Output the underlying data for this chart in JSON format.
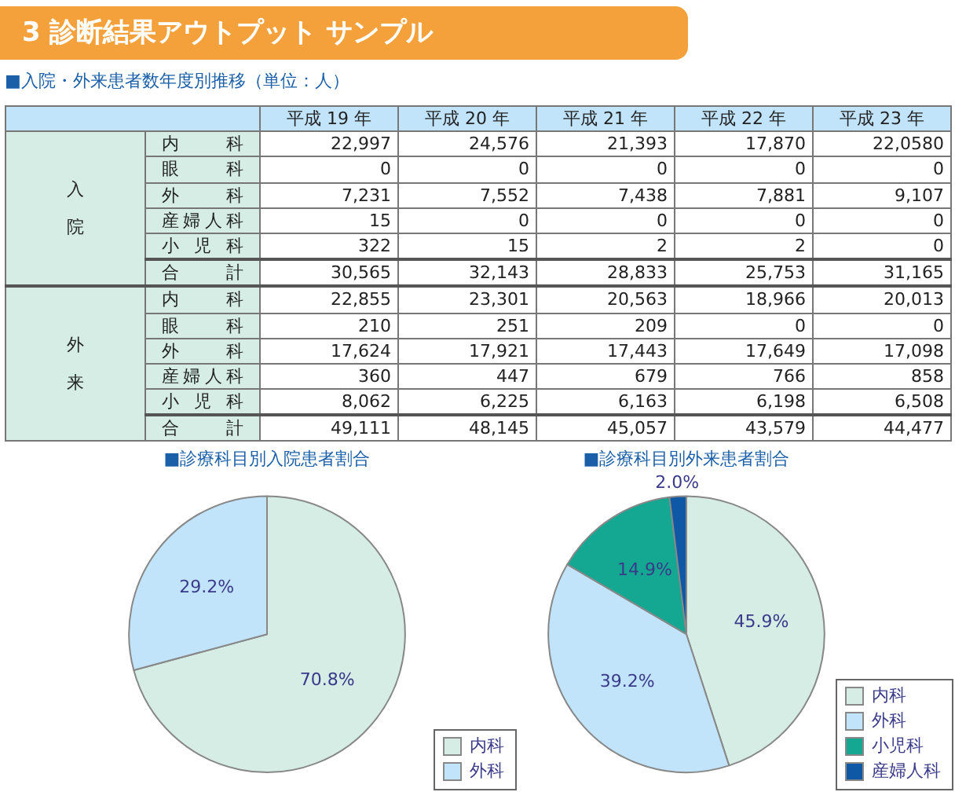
{
  "chart_data": [
    {
      "type": "heatmap",
      "title": "3 診断結果アウトプット サンプル",
      "subtitle": "■入院・外来患者数年度別推移（単位：人）",
      "categories": [
        "平成 19 年",
        "平成 20 年",
        "平成 21 年",
        "平成 22 年",
        "平成 23 年"
      ],
      "y_categories": [
        "内科",
        "眼科",
        "外科",
        "産婦人科",
        "小児科",
        "合計",
        "内科",
        "眼科",
        "外科",
        "産婦人科",
        "小児科",
        "合計"
      ],
      "annotations": [
        "入院",
        "外来"
      ],
      "cells": [
        [
          "22,997",
          "24,576",
          "21,393",
          "17,870",
          "22,0580"
        ],
        [
          "0",
          "0",
          "0",
          "0",
          "0"
        ],
        [
          "7,231",
          "7,552",
          "7,438",
          "7,881",
          "9,107"
        ],
        [
          "15",
          "0",
          "0",
          "0",
          "0"
        ],
        [
          "322",
          "15",
          "2",
          "2",
          "0"
        ],
        [
          "30,565",
          "32,143",
          "28,833",
          "25,753",
          "31,165"
        ],
        [
          "22,855",
          "23,301",
          "20,563",
          "18,966",
          "20,013"
        ],
        [
          "210",
          "251",
          "209",
          "0",
          "0"
        ],
        [
          "17,624",
          "17,921",
          "17,443",
          "17,649",
          "17,098"
        ],
        [
          "360",
          "447",
          "679",
          "766",
          "858"
        ],
        [
          "8,062",
          "6,225",
          "6,163",
          "6,198",
          "6,508"
        ],
        [
          "49,111",
          "48,145",
          "45,057",
          "43,579",
          "44,477"
        ]
      ]
    },
    {
      "type": "pie",
      "title": "■診療科目別入院患者割合",
      "categories": [
        "内科",
        "外科"
      ],
      "values": [
        70.8,
        29.2
      ],
      "colors": [
        "#d5ede4",
        "#c2e4fb"
      ],
      "value_labels": [
        "70.8%",
        "29.2%"
      ],
      "legend": "bottom right"
    },
    {
      "type": "pie",
      "title": "■診療科目別外来患者割合",
      "categories": [
        "内科",
        "外科",
        "小児科",
        "産婦人科"
      ],
      "values": [
        45.9,
        39.2,
        14.9,
        2.0
      ],
      "colors": [
        "#d5ede4",
        "#c2e4fb",
        "#14a892",
        "#0f58a6"
      ],
      "value_labels": [
        "45.9%",
        "39.2%",
        "14.9%",
        "2.0%"
      ],
      "legend": "bottom right"
    }
  ]
}
